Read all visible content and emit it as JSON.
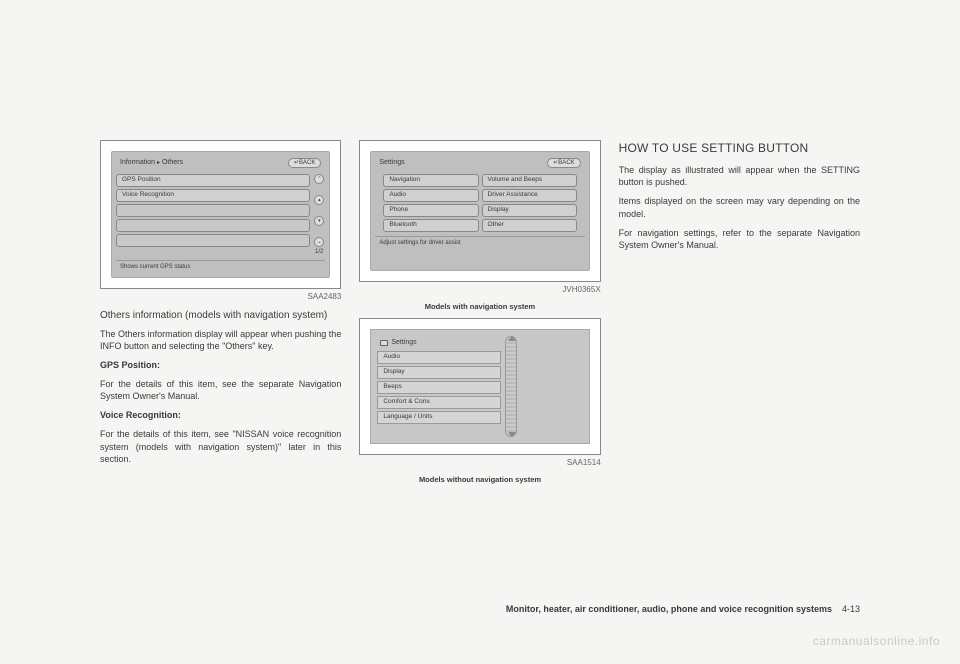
{
  "col1": {
    "fig1": {
      "header_left": "Information",
      "header_sep": "▸",
      "header_right": "Others",
      "back": "↵BACK",
      "items": [
        "GPS Position",
        "Voice Recognition"
      ],
      "page_indicator": "1/2",
      "footer": "Shows current GPS status",
      "label": "SAA2483"
    },
    "subhead": "Others information (models with navigation system)",
    "p1": "The Others information display will appear when pushing the INFO button and selecting the \"Others\" key.",
    "h_gps": "GPS Position:",
    "p2": "For the details of this item, see the separate Navigation System Owner's Manual.",
    "h_voice": "Voice Recognition:",
    "p3": "For the details of this item, see \"NISSAN voice recognition system (models with navigation system)\" later in this section."
  },
  "col2": {
    "fig2": {
      "header": "Settings",
      "back": "↵BACK",
      "left": [
        "Navigation",
        "Audio",
        "Phone",
        "Bluetooth"
      ],
      "right": [
        "Volume and Beeps",
        "Driver Assistance",
        "Display",
        "Other"
      ],
      "footer": "Adjust settings for driver assist",
      "label": "JVH0365X",
      "caption": "Models with navigation system"
    },
    "fig3": {
      "title": "Settings",
      "items": [
        "Audio",
        "Display",
        "Beeps",
        "Comfort & Conv.",
        "Language / Units"
      ],
      "label": "SAA1514",
      "caption": "Models without navigation system"
    }
  },
  "col3": {
    "title": "HOW TO USE SETTING BUTTON",
    "p1": "The display as illustrated will appear when the SETTING button is pushed.",
    "p2": "Items displayed on the screen may vary depending on the model.",
    "p3": "For navigation settings, refer to the separate Navigation System Owner's Manual."
  },
  "footer": {
    "section": "Monitor, heater, air conditioner, audio, phone and voice recognition systems",
    "page": "4-13"
  },
  "watermark": "carmanualsonline.info"
}
